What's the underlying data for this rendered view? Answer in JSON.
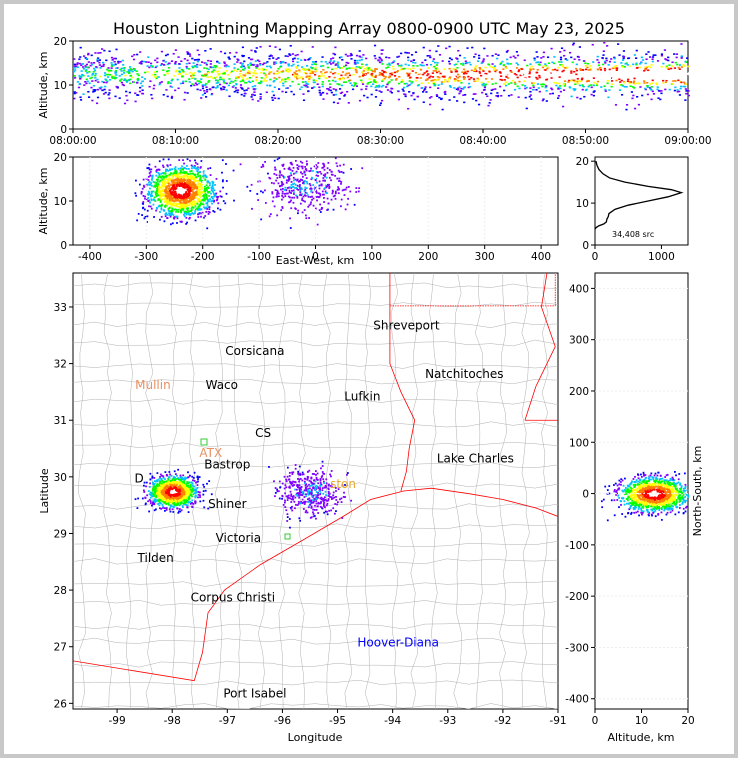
{
  "title": "Houston Lightning Mapping Array 0800-0900 UTC May 23, 2025",
  "colors": {
    "density_scale": [
      "#0000ff",
      "#7f00ff",
      "#00c0ff",
      "#00ff00",
      "#ffff00",
      "#ff8000",
      "#ff0000",
      "#ffffff"
    ],
    "state_border": "#ff0000",
    "coast": "#ff0000",
    "county_lines": "#b0b0b0"
  },
  "chart_data": [
    {
      "name": "altitude-vs-time",
      "type": "heatmap",
      "ylabel": "Altitude, km",
      "ylim": [
        0,
        20
      ],
      "yticks": [
        "0",
        "10",
        "20"
      ],
      "xlim": [
        "08:00:00",
        "09:00:00"
      ],
      "xticks": [
        "08:00:00",
        "08:10:00",
        "08:20:00",
        "08:30:00",
        "08:40:00",
        "08:50:00",
        "09:00:00"
      ],
      "core_altitude_km": [
        9,
        16
      ],
      "intensity_increasing_toward": "09:00:00"
    },
    {
      "name": "altitude-vs-east-west",
      "type": "heatmap",
      "xlabel": "East-West, km",
      "ylabel": "Altitude, km",
      "xlim": [
        -430,
        430
      ],
      "ylim": [
        0,
        20
      ],
      "xticks": [
        "-400",
        "-300",
        "-200",
        "-100",
        "0",
        "100",
        "200",
        "300",
        "400"
      ],
      "yticks": [
        "0",
        "10",
        "20"
      ],
      "clusters": [
        {
          "x_center": -240,
          "x_range": [
            -330,
            -195
          ],
          "alt_center": 12.5,
          "alt_range": [
            6,
            19
          ],
          "intensity": "high"
        },
        {
          "x_center": -20,
          "x_range": [
            -105,
            75
          ],
          "alt_center": 14,
          "alt_range": [
            5,
            20
          ],
          "intensity": "low"
        }
      ]
    },
    {
      "name": "altitude-histogram",
      "type": "line",
      "xlim": [
        0,
        1400
      ],
      "ylim": [
        0,
        21
      ],
      "xticks": [
        "0",
        "1000"
      ],
      "yticks": [
        "0",
        "10",
        "20"
      ],
      "annotation": "34,408 src",
      "x": [
        0,
        20,
        60,
        130,
        170,
        180,
        200,
        210,
        300,
        500,
        800,
        1100,
        1300,
        1150,
        800,
        450,
        220,
        120,
        60,
        30,
        15
      ],
      "y": [
        3.8,
        4.2,
        4.6,
        5.0,
        5.5,
        6.2,
        6.8,
        7.5,
        8.5,
        9.5,
        10.5,
        11.5,
        12.5,
        13.2,
        14.0,
        15.0,
        16.0,
        17.0,
        18.0,
        19.0,
        20.0
      ]
    },
    {
      "name": "plan-view-map",
      "type": "scatter",
      "xlabel": "Longitude",
      "ylabel": "Latitude",
      "xlim": [
        -99.8,
        -91
      ],
      "ylim": [
        25.9,
        33.6
      ],
      "xticks": [
        "-99",
        "-98",
        "-97",
        "-96",
        "-95",
        "-94",
        "-93",
        "-92",
        "-91"
      ],
      "yticks": [
        "26",
        "27",
        "28",
        "29",
        "30",
        "31",
        "32",
        "33"
      ],
      "clusters": [
        {
          "lon": -98.0,
          "lat": 29.75,
          "intensity": "high"
        },
        {
          "lon": -95.5,
          "lat": 29.75,
          "intensity": "low"
        }
      ],
      "places": [
        {
          "name": "Shreveport",
          "lon": -93.75,
          "lat": 32.6,
          "color": "#000000"
        },
        {
          "name": "Corsicana",
          "lon": -96.5,
          "lat": 32.15,
          "color": "#000000"
        },
        {
          "name": "Mullin",
          "lon": -98.35,
          "lat": 31.55,
          "color": "#e89060"
        },
        {
          "name": "Waco",
          "lon": -97.1,
          "lat": 31.55,
          "color": "#000000"
        },
        {
          "name": "Natchitoches",
          "lon": -92.7,
          "lat": 31.75,
          "color": "#000000"
        },
        {
          "name": "Lufkin",
          "lon": -94.55,
          "lat": 31.35,
          "color": "#000000"
        },
        {
          "name": "CS",
          "lon": -96.35,
          "lat": 30.7,
          "color": "#000000"
        },
        {
          "name": "ATX",
          "lon": -97.3,
          "lat": 30.35,
          "color": "#e89060"
        },
        {
          "name": "Bastrop",
          "lon": -97.0,
          "lat": 30.15,
          "color": "#000000"
        },
        {
          "name": "Lake Charles",
          "lon": -92.5,
          "lat": 30.25,
          "color": "#000000"
        },
        {
          "name": "D",
          "lon": -98.6,
          "lat": 29.9,
          "color": "#000000"
        },
        {
          "name": "ston",
          "lon": -94.9,
          "lat": 29.8,
          "color": "#e8a830"
        },
        {
          "name": "Shiner",
          "lon": -97.0,
          "lat": 29.45,
          "color": "#000000"
        },
        {
          "name": "Victoria",
          "lon": -96.8,
          "lat": 28.85,
          "color": "#000000"
        },
        {
          "name": "Tilden",
          "lon": -98.3,
          "lat": 28.5,
          "color": "#000000"
        },
        {
          "name": "Corpus Christi",
          "lon": -96.9,
          "lat": 27.8,
          "color": "#000000"
        },
        {
          "name": "Hoover-Diana",
          "lon": -93.9,
          "lat": 27.0,
          "color": "#0000ff"
        },
        {
          "name": "Port Isabel",
          "lon": -96.5,
          "lat": 26.1,
          "color": "#000000"
        }
      ]
    },
    {
      "name": "north-south-vs-altitude",
      "type": "heatmap",
      "xlabel": "Altitude, km",
      "ylabel": "North-South, km",
      "xlim": [
        0,
        20
      ],
      "ylim": [
        -420,
        430
      ],
      "xticks": [
        "0",
        "10",
        "20"
      ],
      "yticks": [
        "-400",
        "-300",
        "-200",
        "-100",
        "0",
        "100",
        "200",
        "300",
        "400"
      ],
      "clusters": [
        {
          "alt_center": 12.5,
          "alt_range": [
            3,
            20
          ],
          "ns_center": 0,
          "ns_range": [
            -35,
            40
          ],
          "intensity": "high"
        }
      ]
    }
  ]
}
